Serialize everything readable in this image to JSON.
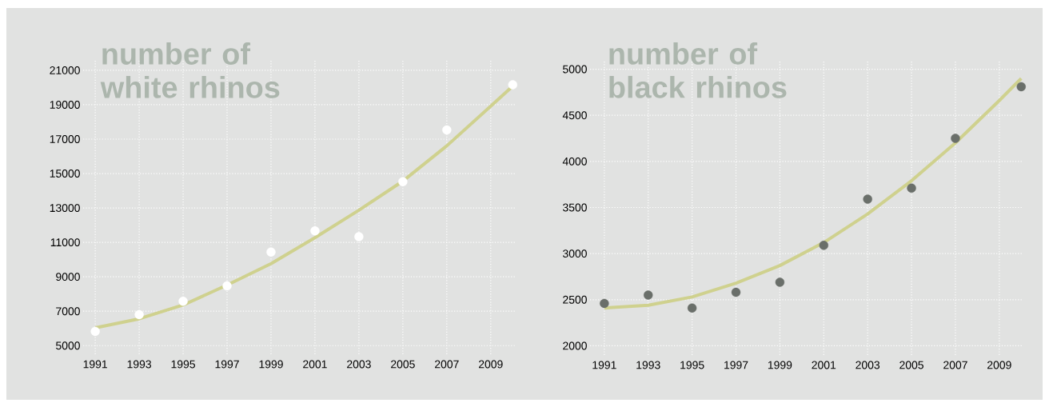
{
  "chart_data": [
    {
      "type": "scatter",
      "title": "number of white rhinos",
      "x": [
        1991,
        1993,
        1995,
        1997,
        1999,
        2001,
        2003,
        2005,
        2007,
        2010
      ],
      "marker": "circle",
      "grid": true,
      "xlim": [
        1990.45,
        2010.1
      ],
      "ylim": [
        4500,
        21600
      ],
      "xticks": [
        1991,
        1993,
        1995,
        1997,
        1999,
        2001,
        2003,
        2005,
        2007,
        2009
      ],
      "yticks": [
        5000,
        7000,
        9000,
        11000,
        13000,
        15000,
        17000,
        19000,
        21000
      ],
      "series": [
        {
          "color": "#ffffff",
          "values": [
            5830,
            6800,
            7580,
            8470,
            10440,
            11670,
            11330,
            14530,
            17530,
            20160
          ]
        },
        {
          "type": "line",
          "marker": "none",
          "color": "#cfd18e",
          "x": [
            1991,
            1993,
            1995,
            1997,
            1999,
            2001,
            2003,
            2005,
            2007,
            2009,
            2010
          ],
          "values": [
            6030,
            6560,
            7360,
            8520,
            9760,
            11270,
            12870,
            14560,
            16610,
            18920,
            20080
          ]
        }
      ]
    },
    {
      "type": "scatter",
      "title": "number of black rhinos",
      "x": [
        1991,
        1993,
        1995,
        1997,
        1999,
        2001,
        2003,
        2005,
        2007,
        2010
      ],
      "marker": "circle",
      "grid": true,
      "xlim": [
        1990.35,
        2010.1
      ],
      "ylim": [
        1900,
        5100
      ],
      "xticks": [
        1991,
        1993,
        1995,
        1997,
        1999,
        2001,
        2003,
        2005,
        2007,
        2009
      ],
      "yticks": [
        2000,
        2500,
        3000,
        3500,
        4000,
        4500,
        5000
      ],
      "series": [
        {
          "color": "#6a6f6a",
          "values": [
            2460,
            2550,
            2410,
            2580,
            2690,
            3090,
            3590,
            3710,
            4250,
            4810
          ]
        },
        {
          "type": "line",
          "marker": "none",
          "color": "#cfd18e",
          "x": [
            1991,
            1993,
            1995,
            1997,
            1999,
            2001,
            2003,
            2005,
            2007,
            2009,
            2010
          ],
          "values": [
            2410,
            2440,
            2530,
            2680,
            2870,
            3120,
            3430,
            3790,
            4200,
            4660,
            4900
          ]
        }
      ]
    }
  ]
}
